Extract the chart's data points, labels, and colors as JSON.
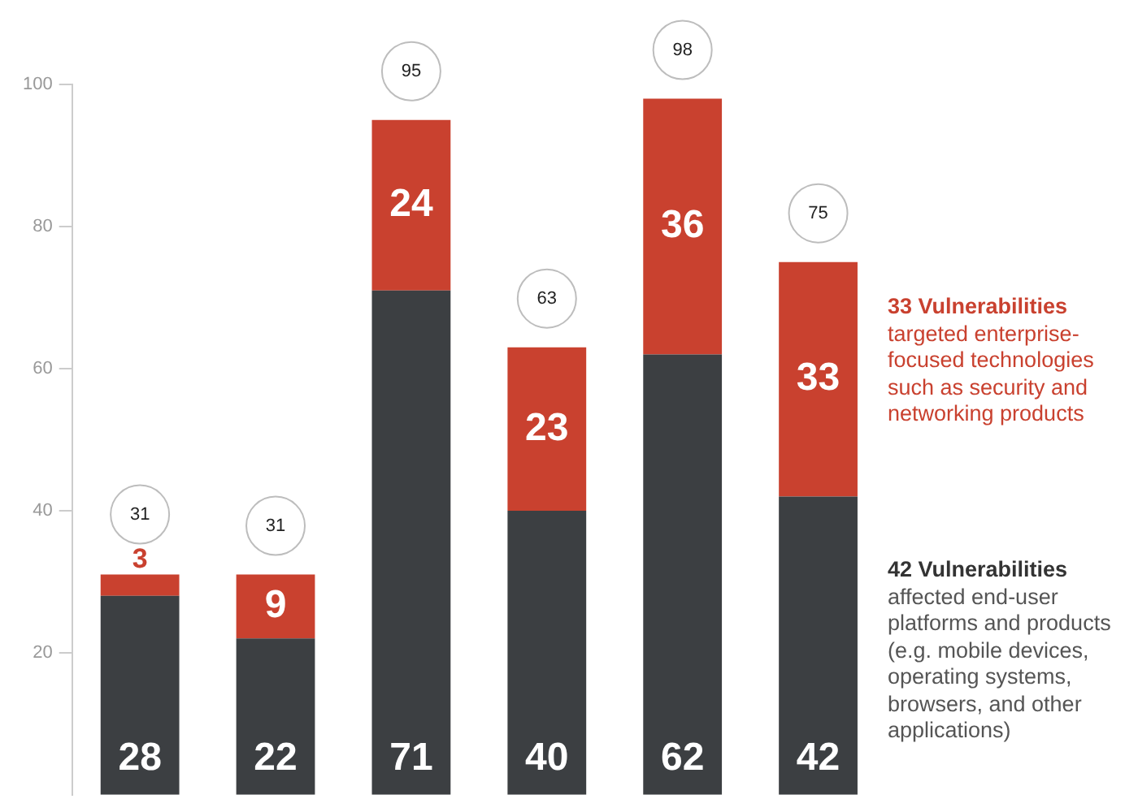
{
  "chart_data": {
    "type": "bar",
    "stacked": true,
    "categories": [
      null,
      null,
      null,
      null,
      null,
      null
    ],
    "series": [
      {
        "color": "#3c3f42",
        "values": [
          28,
          22,
          71,
          40,
          62,
          42
        ]
      },
      {
        "color": "#c9412f",
        "values": [
          3,
          9,
          24,
          23,
          36,
          33
        ]
      }
    ],
    "ylim": [
      0,
      100
    ],
    "yticks": [
      20,
      40,
      60,
      80,
      100
    ],
    "grid": false,
    "legend": false,
    "data_labels": true,
    "totals": [
      "31",
      "31",
      "95",
      "63",
      "98",
      "75"
    ],
    "annotations": [
      "33 Vulnerabilities\ntargeted enterprise-focused technologies such as security and networking products",
      "42 Vulnerabilities\naffected end-user platforms and products (e.g. mobile devices, operating systems, browsers, and other applications)"
    ]
  }
}
